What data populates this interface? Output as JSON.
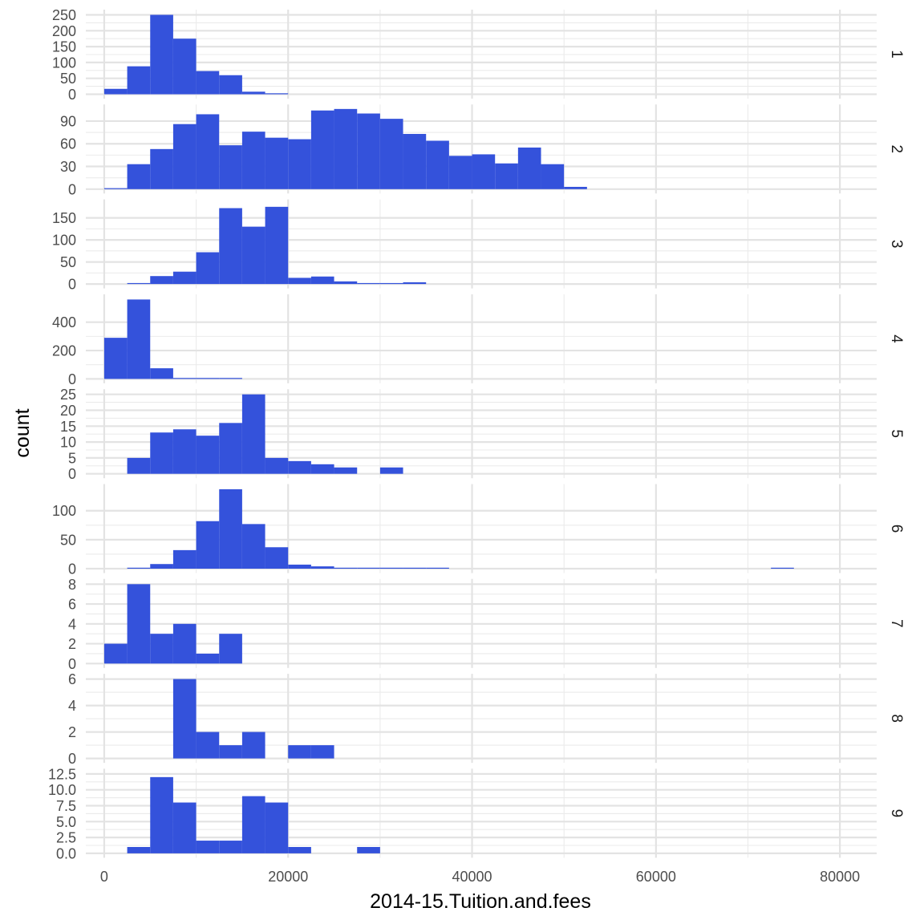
{
  "chart_data": {
    "type": "bar",
    "subtype": "faceted histogram",
    "xlabel": "2014-15.Tuition.and.fees",
    "ylabel": "count",
    "bar_color": "#3452DB",
    "grid": true,
    "xlim": [
      -2000,
      84000
    ],
    "bin_width": 2500,
    "x_ticks": [
      0,
      20000,
      40000,
      60000,
      80000
    ],
    "x_tick_labels": [
      "0",
      "20000",
      "40000",
      "60000",
      "80000"
    ],
    "panels": [
      {
        "label": "1",
        "ylim": [
          0,
          250
        ],
        "y_ticks": [
          0,
          50,
          100,
          150,
          200,
          250
        ],
        "y_tick_labels": [
          "0",
          "50",
          "100",
          "150",
          "200",
          "250"
        ],
        "bins": [
          {
            "x": 0,
            "count": 17
          },
          {
            "x": 2500,
            "count": 88
          },
          {
            "x": 5000,
            "count": 250
          },
          {
            "x": 7500,
            "count": 175
          },
          {
            "x": 10000,
            "count": 73
          },
          {
            "x": 12500,
            "count": 60
          },
          {
            "x": 15000,
            "count": 8
          },
          {
            "x": 17500,
            "count": 2
          }
        ]
      },
      {
        "label": "2",
        "ylim": [
          0,
          105
        ],
        "y_ticks": [
          0,
          30,
          60,
          90
        ],
        "y_tick_labels": [
          "0",
          "30",
          "60",
          "90"
        ],
        "bins": [
          {
            "x": 0,
            "count": 1
          },
          {
            "x": 2500,
            "count": 33
          },
          {
            "x": 5000,
            "count": 53
          },
          {
            "x": 7500,
            "count": 86
          },
          {
            "x": 10000,
            "count": 99
          },
          {
            "x": 12500,
            "count": 58
          },
          {
            "x": 15000,
            "count": 76
          },
          {
            "x": 17500,
            "count": 68
          },
          {
            "x": 20000,
            "count": 66
          },
          {
            "x": 22500,
            "count": 104
          },
          {
            "x": 25000,
            "count": 106
          },
          {
            "x": 27500,
            "count": 100
          },
          {
            "x": 30000,
            "count": 93
          },
          {
            "x": 32500,
            "count": 73
          },
          {
            "x": 35000,
            "count": 64
          },
          {
            "x": 37500,
            "count": 44
          },
          {
            "x": 40000,
            "count": 46
          },
          {
            "x": 42500,
            "count": 34
          },
          {
            "x": 45000,
            "count": 55
          },
          {
            "x": 47500,
            "count": 33
          },
          {
            "x": 50000,
            "count": 3
          }
        ]
      },
      {
        "label": "3",
        "ylim": [
          0,
          180
        ],
        "y_ticks": [
          0,
          50,
          100,
          150
        ],
        "y_tick_labels": [
          "0",
          "50",
          "100",
          "150"
        ],
        "bins": [
          {
            "x": 2500,
            "count": 2
          },
          {
            "x": 5000,
            "count": 18
          },
          {
            "x": 7500,
            "count": 28
          },
          {
            "x": 10000,
            "count": 72
          },
          {
            "x": 12500,
            "count": 172
          },
          {
            "x": 15000,
            "count": 130
          },
          {
            "x": 17500,
            "count": 175
          },
          {
            "x": 20000,
            "count": 14
          },
          {
            "x": 22500,
            "count": 17
          },
          {
            "x": 25000,
            "count": 6
          },
          {
            "x": 27500,
            "count": 2
          },
          {
            "x": 30000,
            "count": 1
          },
          {
            "x": 32500,
            "count": 4
          }
        ]
      },
      {
        "label": "4",
        "ylim": [
          0,
          560
        ],
        "y_ticks": [
          0,
          200,
          400
        ],
        "y_tick_labels": [
          "0",
          "200",
          "400"
        ],
        "bins": [
          {
            "x": 0,
            "count": 290
          },
          {
            "x": 2500,
            "count": 560
          },
          {
            "x": 5000,
            "count": 75
          },
          {
            "x": 7500,
            "count": 6
          },
          {
            "x": 10000,
            "count": 5
          },
          {
            "x": 12500,
            "count": 5
          }
        ]
      },
      {
        "label": "5",
        "ylim": [
          0,
          25
        ],
        "y_ticks": [
          0,
          5,
          10,
          15,
          20,
          25
        ],
        "y_tick_labels": [
          "0",
          "5",
          "10",
          "15",
          "20",
          "25"
        ],
        "bins": [
          {
            "x": 2500,
            "count": 5
          },
          {
            "x": 5000,
            "count": 13
          },
          {
            "x": 7500,
            "count": 14
          },
          {
            "x": 10000,
            "count": 12
          },
          {
            "x": 12500,
            "count": 16
          },
          {
            "x": 15000,
            "count": 25
          },
          {
            "x": 17500,
            "count": 5
          },
          {
            "x": 20000,
            "count": 4
          },
          {
            "x": 22500,
            "count": 3
          },
          {
            "x": 25000,
            "count": 2
          },
          {
            "x": 30000,
            "count": 2
          }
        ]
      },
      {
        "label": "6",
        "ylim": [
          0,
          137
        ],
        "y_ticks": [
          0,
          50,
          100
        ],
        "y_tick_labels": [
          "0",
          "50",
          "100"
        ],
        "bins": [
          {
            "x": 2500,
            "count": 1
          },
          {
            "x": 5000,
            "count": 8
          },
          {
            "x": 7500,
            "count": 32
          },
          {
            "x": 10000,
            "count": 82
          },
          {
            "x": 12500,
            "count": 137
          },
          {
            "x": 15000,
            "count": 77
          },
          {
            "x": 17500,
            "count": 37
          },
          {
            "x": 20000,
            "count": 7
          },
          {
            "x": 22500,
            "count": 4
          },
          {
            "x": 25000,
            "count": 1
          },
          {
            "x": 27500,
            "count": 1
          },
          {
            "x": 30000,
            "count": 1
          },
          {
            "x": 32500,
            "count": 1
          },
          {
            "x": 35000,
            "count": 1
          },
          {
            "x": 72500,
            "count": 1
          }
        ]
      },
      {
        "label": "7",
        "ylim": [
          0,
          8
        ],
        "y_ticks": [
          0,
          2,
          4,
          6,
          8
        ],
        "y_tick_labels": [
          "0",
          "2",
          "4",
          "6",
          "8"
        ],
        "bins": [
          {
            "x": 0,
            "count": 2
          },
          {
            "x": 2500,
            "count": 8
          },
          {
            "x": 5000,
            "count": 3
          },
          {
            "x": 7500,
            "count": 4
          },
          {
            "x": 10000,
            "count": 1
          },
          {
            "x": 12500,
            "count": 3
          }
        ]
      },
      {
        "label": "8",
        "ylim": [
          0,
          6
        ],
        "y_ticks": [
          0,
          2,
          4,
          6
        ],
        "y_tick_labels": [
          "0",
          "2",
          "4",
          "6"
        ],
        "bins": [
          {
            "x": 7500,
            "count": 6
          },
          {
            "x": 10000,
            "count": 2
          },
          {
            "x": 12500,
            "count": 1
          },
          {
            "x": 15000,
            "count": 2
          },
          {
            "x": 20000,
            "count": 1
          },
          {
            "x": 22500,
            "count": 1
          }
        ]
      },
      {
        "label": "9",
        "ylim": [
          0,
          12.5
        ],
        "y_ticks": [
          0,
          2.5,
          5,
          7.5,
          10,
          12.5
        ],
        "y_tick_labels": [
          "0.0",
          "2.5",
          "5.0",
          "7.5",
          "10.0",
          "12.5"
        ],
        "bins": [
          {
            "x": 2500,
            "count": 1
          },
          {
            "x": 5000,
            "count": 12
          },
          {
            "x": 7500,
            "count": 8
          },
          {
            "x": 10000,
            "count": 2
          },
          {
            "x": 12500,
            "count": 2
          },
          {
            "x": 15000,
            "count": 9
          },
          {
            "x": 17500,
            "count": 8
          },
          {
            "x": 20000,
            "count": 1
          },
          {
            "x": 27500,
            "count": 1
          }
        ]
      }
    ]
  }
}
